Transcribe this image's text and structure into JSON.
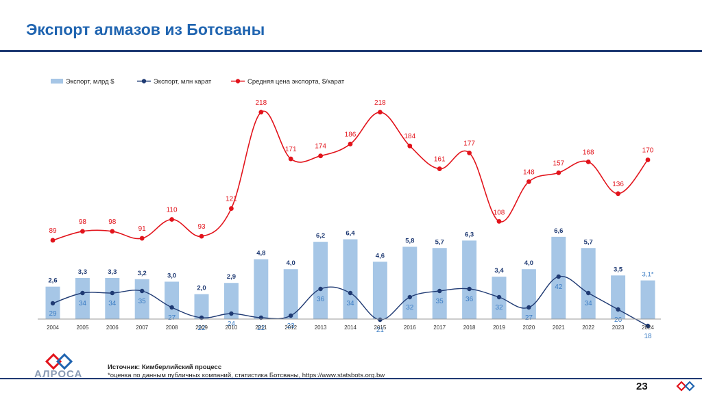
{
  "slide": {
    "title": "Экспорт алмазов из Ботсваны",
    "source_line": "Источник: Кимберлийский процесс",
    "footnote_line": "*оценка по данным публичных компаний, статистика Ботсваны, https://www.statsbots.org.bw",
    "page_number": "23",
    "logo_text": "АЛРОСА"
  },
  "colors": {
    "title": "#1f64b0",
    "bar": "#a6c6e6",
    "bar_label": "#1f3a73",
    "carat_line": "#1f3a73",
    "carat_label": "#3a7cc4",
    "price_line": "#e2131b",
    "price_label": "#e2131b"
  },
  "chart_data": {
    "type": "bar",
    "categories": [
      "2004",
      "2005",
      "2006",
      "2007",
      "2008",
      "2009",
      "2010",
      "2011",
      "2012",
      "2013",
      "2014",
      "2015",
      "2016",
      "2017",
      "2018",
      "2019",
      "2020",
      "2021",
      "2022",
      "2023",
      "2024"
    ],
    "legend_position": "top-left",
    "grid": false,
    "series": [
      {
        "name": "Экспорт, млрд $",
        "type": "bar",
        "values": [
          2.6,
          3.3,
          3.3,
          3.2,
          3.0,
          2.0,
          2.9,
          4.8,
          4.0,
          6.2,
          6.4,
          4.6,
          5.8,
          5.7,
          6.3,
          3.4,
          4.0,
          6.6,
          5.7,
          3.5,
          3.1
        ],
        "labels": [
          "2,6",
          "3,3",
          "3,3",
          "3,2",
          "3,0",
          "2,0",
          "2,9",
          "4,8",
          "4,0",
          "6,2",
          "6,4",
          "4,6",
          "5,8",
          "5,7",
          "6,3",
          "3,4",
          "4,0",
          "6,6",
          "5,7",
          "3,5",
          "3,1*"
        ]
      },
      {
        "name": "Экспорт, млн карат",
        "type": "line",
        "values": [
          29,
          34,
          34,
          35,
          27,
          22,
          24,
          22,
          23,
          36,
          34,
          21,
          32,
          35,
          36,
          32,
          27,
          42,
          34,
          26,
          18
        ],
        "labels": [
          "29",
          "34",
          "34",
          "35",
          "27",
          "22",
          "24",
          "22",
          "23",
          "36",
          "34",
          "21",
          "32",
          "35",
          "36",
          "32",
          "27",
          "42",
          "34",
          "26",
          "18"
        ]
      },
      {
        "name": "Средняя цена экспорта, $/карат",
        "type": "line",
        "smooth": true,
        "values": [
          89,
          98,
          98,
          91,
          110,
          93,
          121,
          218,
          171,
          174,
          186,
          218,
          184,
          161,
          177,
          108,
          148,
          157,
          168,
          136,
          170
        ],
        "labels": [
          "89",
          "98",
          "98",
          "91",
          "110",
          "93",
          "121",
          "218",
          "171",
          "174",
          "186",
          "218",
          "184",
          "161",
          "177",
          "108",
          "148",
          "157",
          "168",
          "136",
          "170"
        ]
      }
    ]
  }
}
